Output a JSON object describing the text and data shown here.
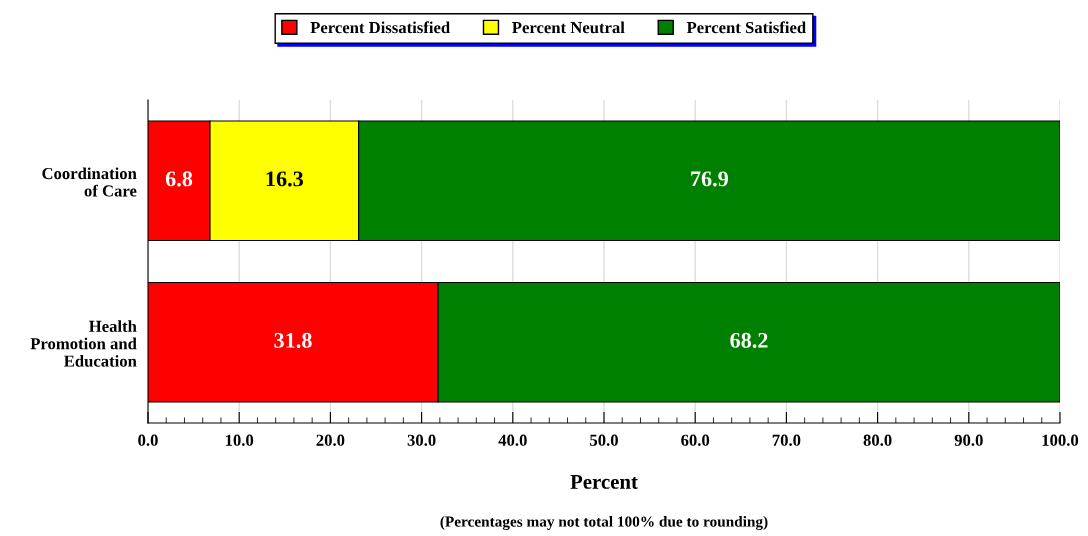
{
  "chart_data": {
    "type": "bar",
    "orientation": "horizontal",
    "stacked": true,
    "categories": [
      "Coordination\nof Care",
      "Health\nPromotion and\nEducation"
    ],
    "series": [
      {
        "name": "Percent Dissatisfied",
        "color": "#ff0000",
        "values": [
          6.8,
          31.8
        ]
      },
      {
        "name": "Percent Neutral",
        "color": "#ffff00",
        "values": [
          16.3,
          null
        ]
      },
      {
        "name": "Percent Satisfied",
        "color": "#008000",
        "values": [
          76.9,
          68.2
        ]
      }
    ],
    "xlim": [
      0,
      100
    ],
    "xticks": [
      {
        "value": 0,
        "label": "0.0"
      },
      {
        "value": 2,
        "label": null
      },
      {
        "value": 4,
        "label": null
      },
      {
        "value": 6,
        "label": null
      },
      {
        "value": 8,
        "label": null
      },
      {
        "value": 10,
        "label": "10.0"
      },
      {
        "value": 12,
        "label": null
      },
      {
        "value": 14,
        "label": null
      },
      {
        "value": 16,
        "label": null
      },
      {
        "value": 18,
        "label": null
      },
      {
        "value": 20,
        "label": "20.0"
      },
      {
        "value": 22,
        "label": null
      },
      {
        "value": 24,
        "label": null
      },
      {
        "value": 26,
        "label": null
      },
      {
        "value": 28,
        "label": null
      },
      {
        "value": 30,
        "label": "30.0"
      },
      {
        "value": 32,
        "label": null
      },
      {
        "value": 34,
        "label": null
      },
      {
        "value": 36,
        "label": null
      },
      {
        "value": 38,
        "label": null
      },
      {
        "value": 40,
        "label": "40.0"
      },
      {
        "value": 42,
        "label": null
      },
      {
        "value": 44,
        "label": null
      },
      {
        "value": 46,
        "label": null
      },
      {
        "value": 48,
        "label": null
      },
      {
        "value": 50,
        "label": "50.0"
      },
      {
        "value": 52,
        "label": null
      },
      {
        "value": 54,
        "label": null
      },
      {
        "value": 56,
        "label": null
      },
      {
        "value": 58,
        "label": null
      },
      {
        "value": 60,
        "label": "60.0"
      },
      {
        "value": 62,
        "label": null
      },
      {
        "value": 64,
        "label": null
      },
      {
        "value": 66,
        "label": null
      },
      {
        "value": 68,
        "label": null
      },
      {
        "value": 70,
        "label": "70.0"
      },
      {
        "value": 72,
        "label": null
      },
      {
        "value": 74,
        "label": null
      },
      {
        "value": 76,
        "label": null
      },
      {
        "value": 78,
        "label": null
      },
      {
        "value": 80,
        "label": "80.0"
      },
      {
        "value": 82,
        "label": null
      },
      {
        "value": 84,
        "label": null
      },
      {
        "value": 86,
        "label": null
      },
      {
        "value": 88,
        "label": null
      },
      {
        "value": 90,
        "label": "90.0"
      },
      {
        "value": 92,
        "label": null
      },
      {
        "value": 94,
        "label": null
      },
      {
        "value": 96,
        "label": null
      },
      {
        "value": 98,
        "label": null
      },
      {
        "value": 100,
        "label": "100.0"
      }
    ],
    "xlabel": "Percent",
    "annotations": [
      "(Percentages may not total 100% due to rounding)"
    ],
    "data_labels": true,
    "grid": "x",
    "legend": "top"
  }
}
